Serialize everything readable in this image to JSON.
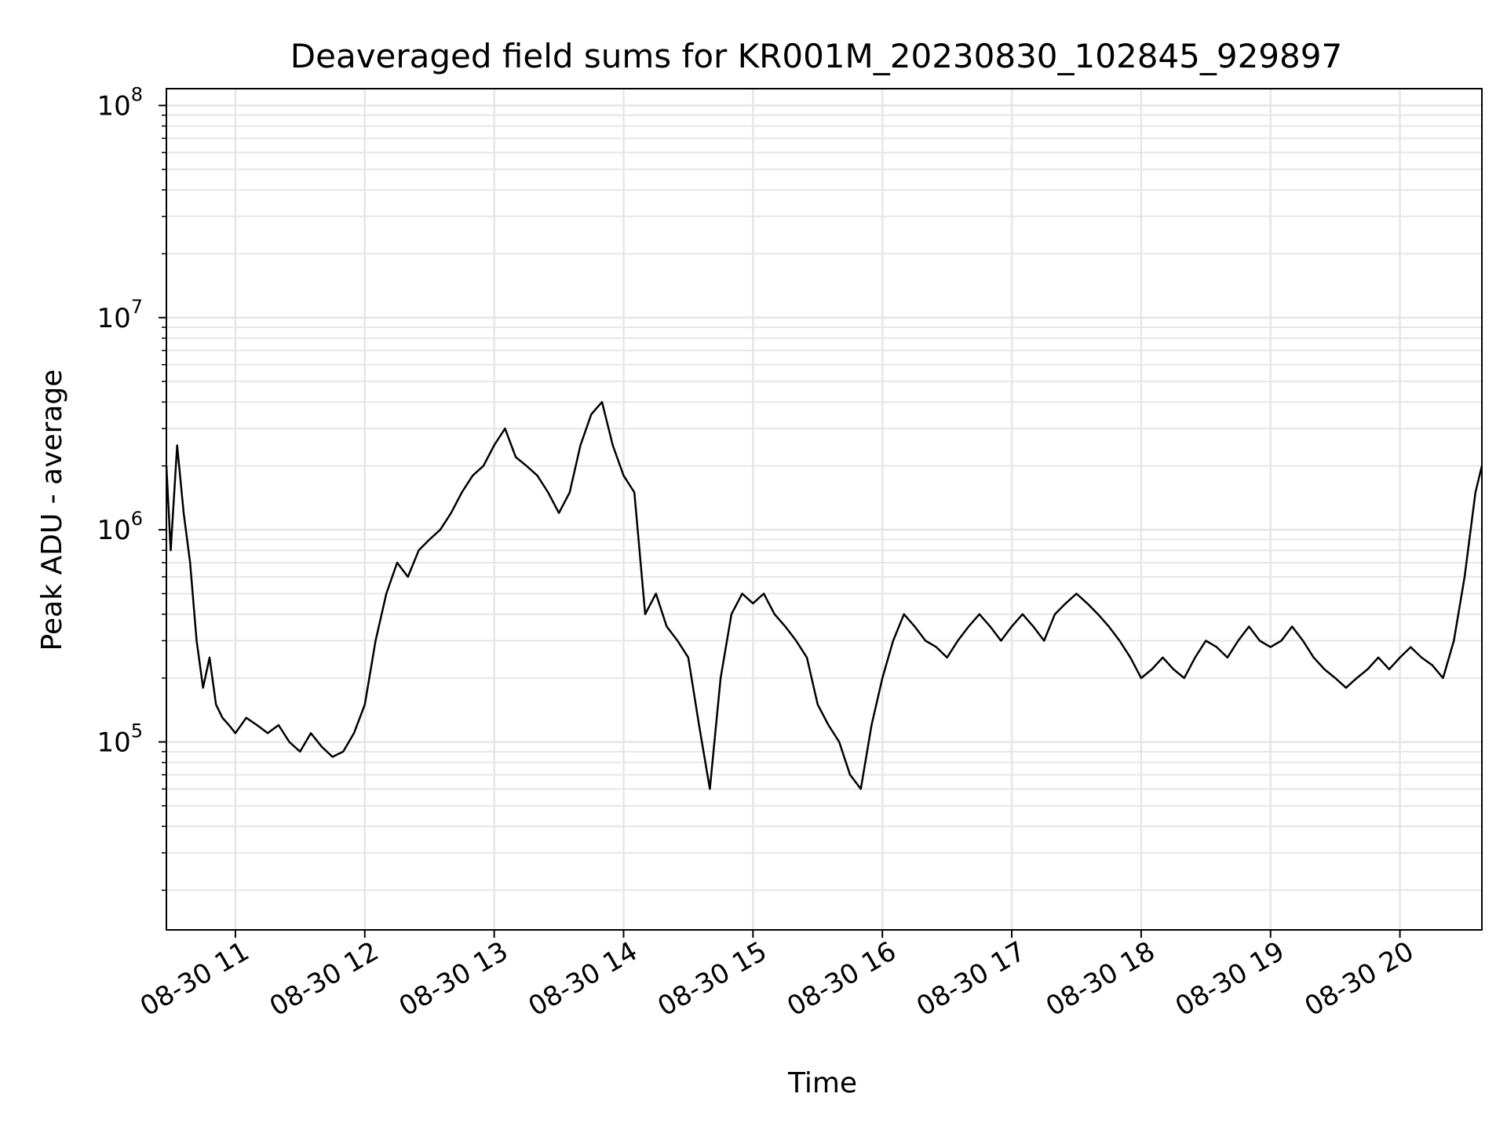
{
  "chart_data": {
    "type": "line",
    "title": "Deaveraged field sums for KR001M_20230830_102845_929897",
    "xlabel": "Time",
    "ylabel": "Peak ADU - average",
    "y_scale": "log",
    "ylim": [
      13000,
      120000000
    ],
    "xlim": [
      "08-30 10:28",
      "08-30 20:38"
    ],
    "grid": true,
    "line_color": "#000000",
    "grid_color": "#e6e6e6",
    "x_ticks": [
      {
        "t": "08-30 11:00",
        "label": "08-30 11"
      },
      {
        "t": "08-30 12:00",
        "label": "08-30 12"
      },
      {
        "t": "08-30 13:00",
        "label": "08-30 13"
      },
      {
        "t": "08-30 14:00",
        "label": "08-30 14"
      },
      {
        "t": "08-30 15:00",
        "label": "08-30 15"
      },
      {
        "t": "08-30 16:00",
        "label": "08-30 16"
      },
      {
        "t": "08-30 17:00",
        "label": "08-30 17"
      },
      {
        "t": "08-30 18:00",
        "label": "08-30 18"
      },
      {
        "t": "08-30 19:00",
        "label": "08-30 19"
      },
      {
        "t": "08-30 20:00",
        "label": "08-30 20"
      }
    ],
    "y_ticks": [
      {
        "value": 100000,
        "base": "10",
        "exp": "5"
      },
      {
        "value": 1000000,
        "base": "10",
        "exp": "6"
      },
      {
        "value": 10000000,
        "base": "10",
        "exp": "7"
      },
      {
        "value": 100000000,
        "base": "10",
        "exp": "8"
      }
    ],
    "series": [
      {
        "x": [
          "08-30 10:28",
          "08-30 10:30",
          "08-30 10:33",
          "08-30 10:36",
          "08-30 10:39",
          "08-30 10:42",
          "08-30 10:45",
          "08-30 10:48",
          "08-30 10:51",
          "08-30 10:54",
          "08-30 10:57",
          "08-30 11:00",
          "08-30 11:05",
          "08-30 11:10",
          "08-30 11:15",
          "08-30 11:20",
          "08-30 11:25",
          "08-30 11:30",
          "08-30 11:35",
          "08-30 11:40",
          "08-30 11:45",
          "08-30 11:50",
          "08-30 11:55",
          "08-30 12:00",
          "08-30 12:05",
          "08-30 12:10",
          "08-30 12:15",
          "08-30 12:20",
          "08-30 12:25",
          "08-30 12:30",
          "08-30 12:35",
          "08-30 12:40",
          "08-30 12:45",
          "08-30 12:50",
          "08-30 12:55",
          "08-30 13:00",
          "08-30 13:05",
          "08-30 13:10",
          "08-30 13:15",
          "08-30 13:20",
          "08-30 13:25",
          "08-30 13:30",
          "08-30 13:35",
          "08-30 13:40",
          "08-30 13:45",
          "08-30 13:50",
          "08-30 13:55",
          "08-30 14:00",
          "08-30 14:05",
          "08-30 14:10",
          "08-30 14:15",
          "08-30 14:20",
          "08-30 14:25",
          "08-30 14:30",
          "08-30 14:35",
          "08-30 14:40",
          "08-30 14:45",
          "08-30 14:50",
          "08-30 14:55",
          "08-30 15:00",
          "08-30 15:05",
          "08-30 15:10",
          "08-30 15:15",
          "08-30 15:20",
          "08-30 15:25",
          "08-30 15:30",
          "08-30 15:35",
          "08-30 15:40",
          "08-30 15:45",
          "08-30 15:50",
          "08-30 15:55",
          "08-30 16:00",
          "08-30 16:05",
          "08-30 16:10",
          "08-30 16:15",
          "08-30 16:20",
          "08-30 16:25",
          "08-30 16:30",
          "08-30 16:35",
          "08-30 16:40",
          "08-30 16:45",
          "08-30 16:50",
          "08-30 16:55",
          "08-30 17:00",
          "08-30 17:05",
          "08-30 17:10",
          "08-30 17:15",
          "08-30 17:20",
          "08-30 17:25",
          "08-30 17:30",
          "08-30 17:35",
          "08-30 17:40",
          "08-30 17:45",
          "08-30 17:50",
          "08-30 17:55",
          "08-30 18:00",
          "08-30 18:05",
          "08-30 18:10",
          "08-30 18:15",
          "08-30 18:20",
          "08-30 18:25",
          "08-30 18:30",
          "08-30 18:35",
          "08-30 18:40",
          "08-30 18:45",
          "08-30 18:50",
          "08-30 18:55",
          "08-30 19:00",
          "08-30 19:05",
          "08-30 19:10",
          "08-30 19:15",
          "08-30 19:20",
          "08-30 19:25",
          "08-30 19:30",
          "08-30 19:35",
          "08-30 19:40",
          "08-30 19:45",
          "08-30 19:50",
          "08-30 19:55",
          "08-30 20:00",
          "08-30 20:05",
          "08-30 20:10",
          "08-30 20:15",
          "08-30 20:20",
          "08-30 20:25",
          "08-30 20:30",
          "08-30 20:35",
          "08-30 20:38"
        ],
        "y": [
          2000000,
          800000,
          2500000,
          1200000,
          700000,
          300000,
          180000,
          250000,
          150000,
          130000,
          120000,
          110000,
          130000,
          120000,
          110000,
          120000,
          100000,
          90000,
          110000,
          95000,
          85000,
          90000,
          110000,
          150000,
          300000,
          500000,
          700000,
          600000,
          800000,
          900000,
          1000000,
          1200000,
          1500000,
          1800000,
          2000000,
          2500000,
          3000000,
          2200000,
          2000000,
          1800000,
          1500000,
          1200000,
          1500000,
          2500000,
          3500000,
          4000000,
          2500000,
          1800000,
          1500000,
          400000,
          500000,
          350000,
          300000,
          250000,
          120000,
          60000,
          200000,
          400000,
          500000,
          450000,
          500000,
          400000,
          350000,
          300000,
          250000,
          150000,
          120000,
          100000,
          70000,
          60000,
          120000,
          200000,
          300000,
          400000,
          350000,
          300000,
          280000,
          250000,
          300000,
          350000,
          400000,
          350000,
          300000,
          350000,
          400000,
          350000,
          300000,
          400000,
          450000,
          500000,
          450000,
          400000,
          350000,
          300000,
          250000,
          200000,
          220000,
          250000,
          220000,
          200000,
          250000,
          300000,
          280000,
          250000,
          300000,
          350000,
          300000,
          280000,
          300000,
          350000,
          300000,
          250000,
          220000,
          200000,
          180000,
          200000,
          220000,
          250000,
          220000,
          250000,
          280000,
          250000,
          230000,
          200000,
          300000,
          600000,
          1500000,
          2000000
        ]
      }
    ]
  }
}
